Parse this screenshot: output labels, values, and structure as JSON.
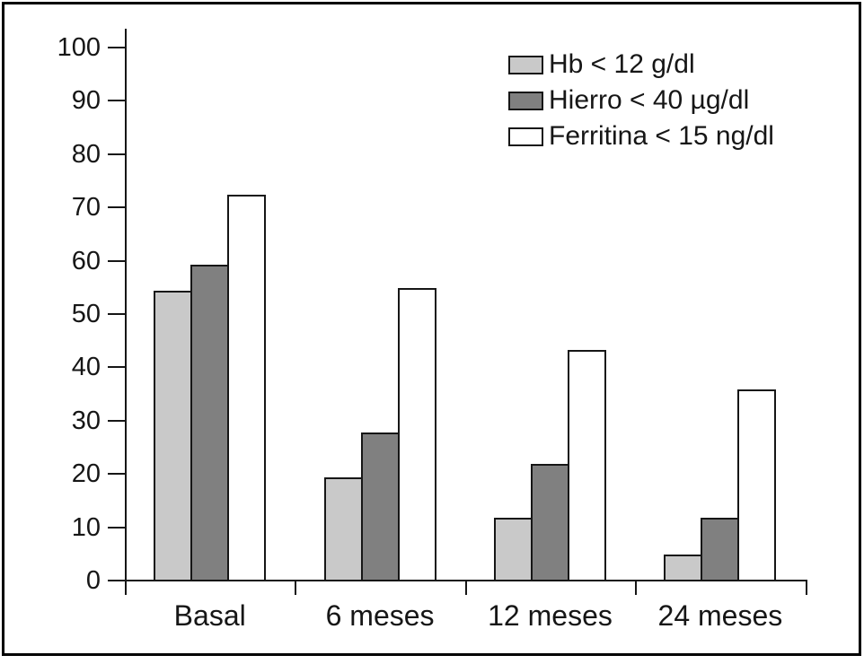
{
  "chart_data": {
    "type": "bar",
    "title": "",
    "xlabel": "",
    "ylabel": "",
    "categories": [
      "Basal",
      "6 meses",
      "12 meses",
      "24 meses"
    ],
    "series": [
      {
        "name": "Hb < 12 g/dl",
        "color": "#c9c9c9",
        "values": [
          54.5,
          19.5,
          12.0,
          5.0
        ]
      },
      {
        "name": "Hierro < 40 µg/dl",
        "color": "#808080",
        "values": [
          59.5,
          28.0,
          22.0,
          12.0
        ]
      },
      {
        "name": "Ferritina < 15 ng/dl",
        "color": "#ffffff",
        "values": [
          72.5,
          55.0,
          43.5,
          36.0
        ]
      }
    ],
    "ylim": [
      0,
      100
    ],
    "yticks": [
      0,
      10,
      20,
      30,
      40,
      50,
      60,
      70,
      80,
      90,
      100
    ],
    "grid": false,
    "legend_position": "top-right",
    "axis_color": "#161616",
    "background_color": "#ffffff",
    "frame_border_color": "#000000"
  }
}
